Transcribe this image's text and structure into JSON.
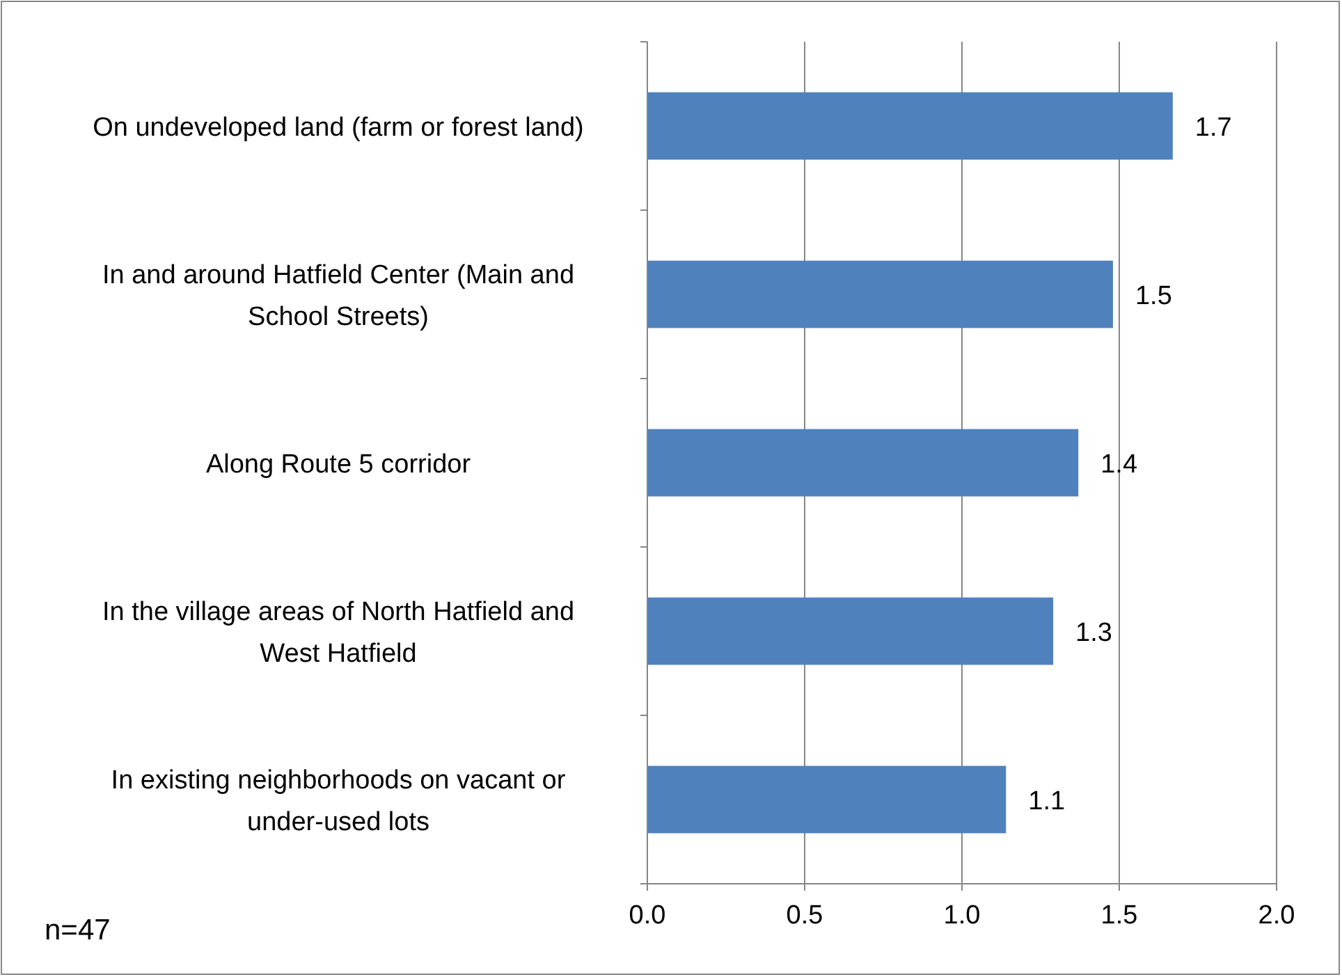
{
  "chart_data": {
    "type": "bar",
    "orientation": "horizontal",
    "categories": [
      "On undeveloped land (farm or forest land)",
      "In and around Hatfield Center (Main and School Streets)",
      "Along Route 5 corridor",
      "In the village areas of North Hatfield and West Hatfield",
      "In existing neighborhoods on vacant or under-used lots"
    ],
    "values": [
      1.67,
      1.48,
      1.37,
      1.29,
      1.14
    ],
    "value_labels": [
      "1.7",
      "1.5",
      "1.4",
      "1.3",
      "1.1"
    ],
    "color": "#4f81bd",
    "xlim": [
      0,
      2
    ],
    "xticks": [
      {
        "value": 0,
        "label": "0.0"
      },
      {
        "value": 0.5,
        "label": "0.5"
      },
      {
        "value": 1,
        "label": "1.0"
      },
      {
        "value": 1.5,
        "label": "1.5"
      },
      {
        "value": 2,
        "label": "2.0"
      }
    ],
    "grid": "x",
    "annotations": [
      "n=47"
    ]
  }
}
